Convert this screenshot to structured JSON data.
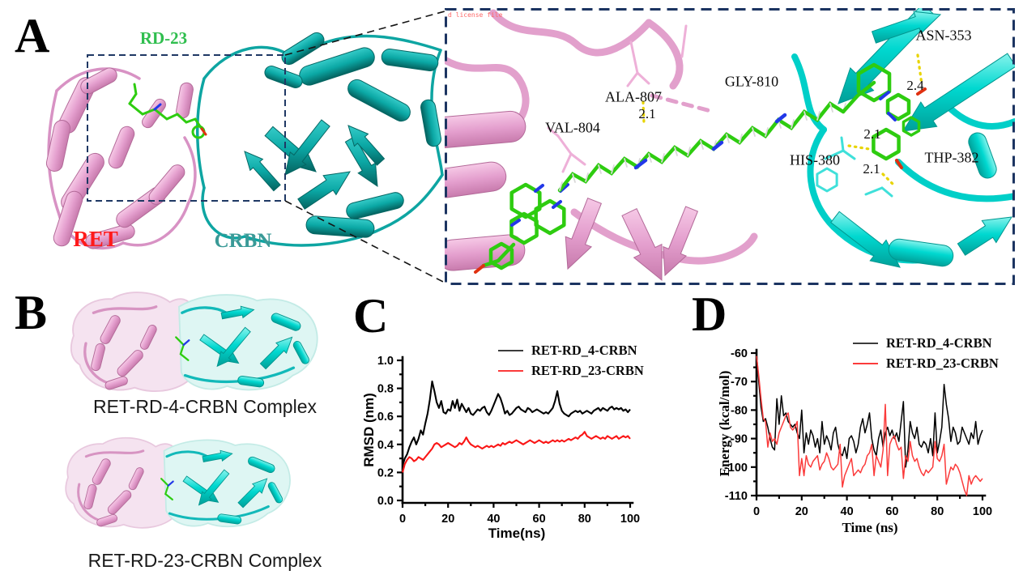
{
  "figure": {
    "panels": {
      "a": {
        "label": "A",
        "ret_label": "RET",
        "crbn_label": "CRBN",
        "ligand_label": "RD-23",
        "inset": {
          "watermark": "d license file",
          "residues": [
            "VAL-804",
            "ALA-807",
            "GLY-810",
            "ASN-353",
            "HIS-380",
            "THP-382"
          ],
          "distances": [
            "2.1",
            "2.4",
            "2.1",
            "2.1"
          ]
        }
      },
      "b": {
        "label": "B",
        "caption_top": "RET-RD-4-CRBN Complex",
        "caption_bottom": "RET-RD-23-CRBN Complex"
      },
      "c": {
        "label": "C"
      },
      "d": {
        "label": "D"
      }
    },
    "colors": {
      "ret_label": "#ff1a1a",
      "crbn_label": "#3a9a97",
      "ligand_label": "#2fbe4e",
      "pink_protein": "#e6a3d0",
      "pink_dark": "#b36a99",
      "teal_protein": "#0ba8a5",
      "teal_dark": "#056663",
      "cyan_protein": "#00d8d2",
      "cyan_dark": "#00968f",
      "ligand_green": "#2ecc10",
      "nitrogen_blue": "#2238e8",
      "oxygen_red": "#e03010",
      "hbond_yellow": "#e8d400",
      "box_navy": "#1f3864",
      "legend_black": "#3c3c3c",
      "legend_red": "#fb3b3b"
    }
  },
  "chart_data": [
    {
      "id": "c",
      "type": "line",
      "title": "",
      "xlabel": "Time(ns)",
      "ylabel": "RMSD (nm)",
      "xlim": [
        0,
        100
      ],
      "ylim": [
        0.0,
        1.0
      ],
      "xticks": [
        0,
        20,
        40,
        60,
        80,
        100
      ],
      "xtick_labels": [
        "0",
        "20",
        "40",
        "60",
        "80",
        "100"
      ],
      "xminor_step": 10,
      "ytick_values": [
        0.0,
        0.2,
        0.4,
        0.6,
        0.8,
        1.0
      ],
      "ytick_labels": [
        "0.0",
        "0.2",
        "0.4",
        "0.6",
        "0.8",
        "1.0"
      ],
      "yminor_step": 0.1,
      "legend_position": "top-right",
      "x_start": 0,
      "x_step": 1,
      "series": [
        {
          "name": "RET-RD_4-CRBN",
          "color": "#000000",
          "values": [
            0.25,
            0.3,
            0.33,
            0.38,
            0.42,
            0.45,
            0.4,
            0.44,
            0.5,
            0.47,
            0.55,
            0.62,
            0.72,
            0.85,
            0.78,
            0.7,
            0.66,
            0.71,
            0.63,
            0.62,
            0.65,
            0.64,
            0.71,
            0.66,
            0.72,
            0.64,
            0.69,
            0.66,
            0.63,
            0.66,
            0.62,
            0.61,
            0.63,
            0.65,
            0.64,
            0.66,
            0.67,
            0.63,
            0.61,
            0.64,
            0.68,
            0.72,
            0.76,
            0.73,
            0.68,
            0.62,
            0.64,
            0.61,
            0.62,
            0.64,
            0.66,
            0.67,
            0.65,
            0.64,
            0.63,
            0.66,
            0.65,
            0.63,
            0.64,
            0.65,
            0.64,
            0.63,
            0.62,
            0.63,
            0.62,
            0.64,
            0.66,
            0.71,
            0.78,
            0.69,
            0.64,
            0.62,
            0.61,
            0.6,
            0.62,
            0.63,
            0.64,
            0.63,
            0.64,
            0.62,
            0.63,
            0.64,
            0.63,
            0.62,
            0.64,
            0.65,
            0.66,
            0.64,
            0.66,
            0.65,
            0.64,
            0.66,
            0.67,
            0.65,
            0.66,
            0.65,
            0.66,
            0.64,
            0.65,
            0.63,
            0.65
          ]
        },
        {
          "name": "RET-RD_23-CRBN",
          "color": "#fa1616",
          "values": [
            0.2,
            0.26,
            0.29,
            0.31,
            0.3,
            0.28,
            0.29,
            0.31,
            0.3,
            0.29,
            0.31,
            0.33,
            0.35,
            0.37,
            0.4,
            0.41,
            0.4,
            0.38,
            0.39,
            0.4,
            0.41,
            0.4,
            0.39,
            0.38,
            0.39,
            0.41,
            0.4,
            0.42,
            0.45,
            0.42,
            0.4,
            0.39,
            0.38,
            0.39,
            0.38,
            0.37,
            0.38,
            0.39,
            0.38,
            0.39,
            0.38,
            0.39,
            0.4,
            0.39,
            0.41,
            0.4,
            0.41,
            0.42,
            0.41,
            0.42,
            0.43,
            0.42,
            0.41,
            0.4,
            0.41,
            0.42,
            0.43,
            0.42,
            0.41,
            0.42,
            0.43,
            0.42,
            0.41,
            0.42,
            0.41,
            0.42,
            0.43,
            0.42,
            0.43,
            0.42,
            0.43,
            0.42,
            0.43,
            0.44,
            0.43,
            0.44,
            0.45,
            0.44,
            0.46,
            0.47,
            0.49,
            0.46,
            0.45,
            0.44,
            0.45,
            0.46,
            0.45,
            0.44,
            0.45,
            0.44,
            0.46,
            0.45,
            0.44,
            0.45,
            0.46,
            0.44,
            0.45,
            0.46,
            0.45,
            0.46,
            0.44
          ]
        }
      ]
    },
    {
      "id": "d",
      "type": "line",
      "title": "",
      "xlabel": "Time (ns)",
      "ylabel": "Energy (kcal/mol)",
      "xlim": [
        0,
        100
      ],
      "ylim": [
        -110,
        -60
      ],
      "xticks": [
        0,
        20,
        40,
        60,
        80,
        100
      ],
      "xtick_labels": [
        "0",
        "20",
        "40",
        "60",
        "80",
        "100"
      ],
      "xminor_step": 10,
      "ytick_values": [
        -60,
        -70,
        -80,
        -90,
        -100,
        -110
      ],
      "ytick_labels": [
        "-60",
        "-70",
        "-80",
        "-90",
        "-100",
        "-110"
      ],
      "yminor_step": 5,
      "legend_position": "top-right",
      "x_start": 0,
      "x_step": 1,
      "series": [
        {
          "name": "RET-RD_4-CRBN",
          "color": "#000000",
          "values": [
            -60,
            -70,
            -79,
            -84,
            -83,
            -86,
            -90,
            -93,
            -94,
            -76,
            -85,
            -75,
            -82,
            -81,
            -84,
            -85,
            -86,
            -85,
            -88,
            -90,
            -80,
            -95,
            -88,
            -92,
            -87,
            -89,
            -93,
            -90,
            -95,
            -84,
            -92,
            -89,
            -91,
            -94,
            -88,
            -86,
            -92,
            -95,
            -96,
            -93,
            -97,
            -90,
            -89,
            -91,
            -95,
            -92,
            -86,
            -83,
            -88,
            -85,
            -81,
            -90,
            -94,
            -96,
            -90,
            -87,
            -93,
            -88,
            -86,
            -89,
            -87,
            -90,
            -88,
            -91,
            -84,
            -77,
            -100,
            -94,
            -84,
            -88,
            -90,
            -86,
            -92,
            -93,
            -91,
            -92,
            -95,
            -90,
            -96,
            -81,
            -95,
            -91,
            -86,
            -71,
            -78,
            -83,
            -91,
            -86,
            -88,
            -92,
            -91,
            -86,
            -88,
            -90,
            -92,
            -88,
            -90,
            -84,
            -92,
            -89,
            -87
          ]
        },
        {
          "name": "RET-RD_23-CRBN",
          "color": "#fb3b3b",
          "values": [
            -61,
            -68,
            -76,
            -83,
            -84,
            -93,
            -88,
            -91,
            -90,
            -92,
            -88,
            -86,
            -84,
            -82,
            -81,
            -86,
            -87,
            -86,
            -84,
            -103,
            -97,
            -103,
            -96,
            -99,
            -100,
            -98,
            -97,
            -96,
            -101,
            -99,
            -98,
            -95,
            -97,
            -100,
            -101,
            -100,
            -99,
            -92,
            -107,
            -103,
            -101,
            -99,
            -97,
            -103,
            -102,
            -101,
            -102,
            -100,
            -99,
            -96,
            -95,
            -92,
            -103,
            -96,
            -98,
            -100,
            -94,
            -78,
            -103,
            -92,
            -90,
            -89,
            -92,
            -94,
            -93,
            -104,
            -96,
            -98,
            -91,
            -96,
            -98,
            -97,
            -100,
            -102,
            -103,
            -101,
            -102,
            -101,
            -100,
            -91,
            -97,
            -98,
            -96,
            -92,
            -106,
            -103,
            -100,
            -101,
            -99,
            -100,
            -102,
            -105,
            -108,
            -110,
            -103,
            -106,
            -104,
            -103,
            -104,
            -105,
            -104
          ]
        }
      ]
    }
  ]
}
